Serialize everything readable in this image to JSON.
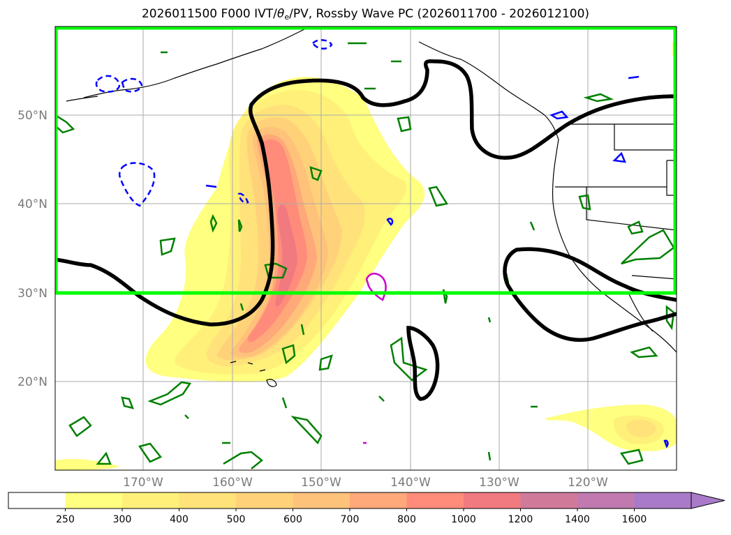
{
  "title": {
    "prefix": "2026011500 F000 IVT/",
    "theta": "θ",
    "theta_sub": "e",
    "suffix": "/PV, Rossby Wave PC (2026011700 - 2026012100)"
  },
  "map": {
    "lat_labels": [
      "50°N",
      "40°N",
      "30°N",
      "20°N"
    ],
    "lon_labels": [
      "170°W",
      "160°W",
      "150°W",
      "140°W",
      "130°W",
      "120°W"
    ],
    "outline_color": "#00ff00",
    "pv_color": "#000000",
    "theta_warm_color": "#008000",
    "theta_cold_color": "#0000ff",
    "magenta_color": "#cc00cc"
  },
  "colorbar": {
    "ticks": [
      "250",
      "300",
      "400",
      "500",
      "600",
      "700",
      "800",
      "1000",
      "1200",
      "1400",
      "1600"
    ],
    "colors": [
      "#ffffff",
      "#ffff80",
      "#fff07a",
      "#ffe27a",
      "#ffd27a",
      "#ffc27a",
      "#ffa87a",
      "#ff8c7a",
      "#f07a80",
      "#d07a9a",
      "#c07ab0",
      "#a87ac8"
    ]
  }
}
